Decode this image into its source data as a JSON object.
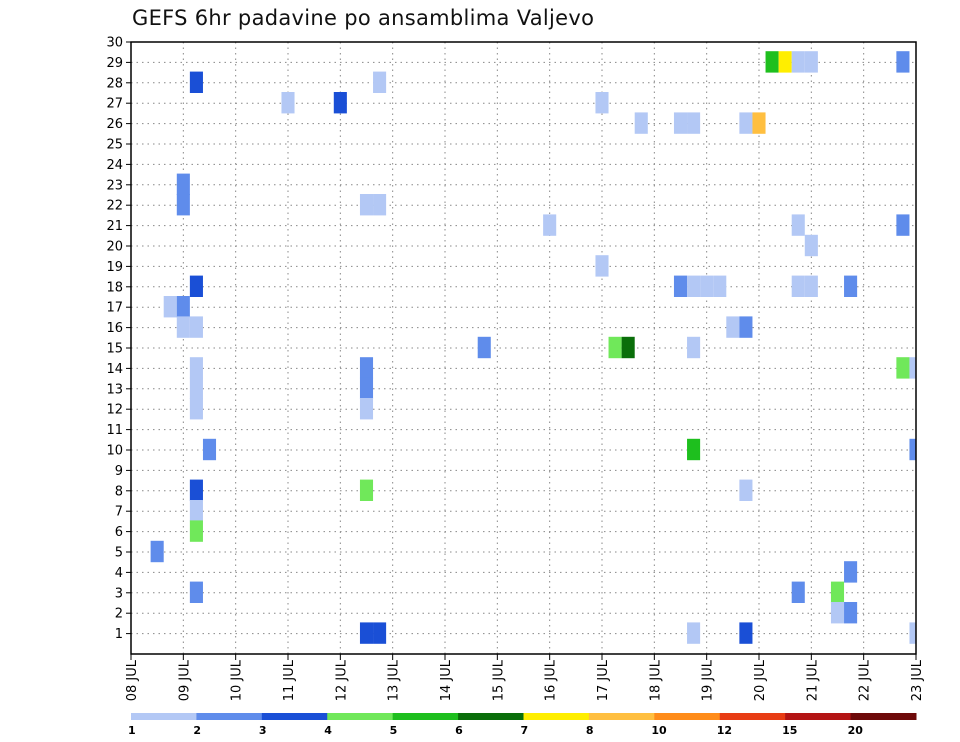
{
  "chart_data": {
    "type": "heatmap",
    "title": "GEFS 6hr padavine po ansamblima Valjevo",
    "y_ticks": [
      "1",
      "2",
      "3",
      "4",
      "5",
      "6",
      "7",
      "8",
      "9",
      "10",
      "11",
      "12",
      "13",
      "14",
      "15",
      "16",
      "17",
      "18",
      "19",
      "20",
      "21",
      "22",
      "23",
      "24",
      "25",
      "26",
      "27",
      "28",
      "29",
      "30"
    ],
    "y_range": [
      0,
      30
    ],
    "x_ticks": [
      "08 JUL",
      "09 JUL",
      "10 JUL",
      "11 JUL",
      "12 JUL",
      "13 JUL",
      "14 JUL",
      "15 JUL",
      "16 JUL",
      "17 JUL",
      "18 JUL",
      "19 JUL",
      "20 JUL",
      "21 JUL",
      "22 JUL",
      "23 JUL"
    ],
    "x_start": "08 JUL",
    "x_end": "23 JUL",
    "step_hours": 6,
    "grid": true,
    "colorbar": {
      "labels": [
        "1",
        "2",
        "3",
        "4",
        "5",
        "6",
        "7",
        "8",
        "10",
        "12",
        "15",
        "20"
      ],
      "colors": [
        "#b3c8f5",
        "#5f8ceb",
        "#1a4fd6",
        "#70e85a",
        "#1ebf1e",
        "#0a6e0a",
        "#ffee00",
        "#ffbf40",
        "#ff8c1a",
        "#e83c14",
        "#b41414",
        "#6e0a0a"
      ]
    },
    "cells": [
      {
        "member": 29,
        "day": "20 JUL",
        "hour": 6,
        "color": "#1ebf1e"
      },
      {
        "member": 29,
        "day": "20 JUL",
        "hour": 12,
        "color": "#ffee00"
      },
      {
        "member": 29,
        "day": "20 JUL",
        "hour": 18,
        "color": "#b3c8f5"
      },
      {
        "member": 29,
        "day": "21 JUL",
        "hour": 0,
        "color": "#b3c8f5"
      },
      {
        "member": 29,
        "day": "22 JUL",
        "hour": 18,
        "color": "#5f8ceb"
      },
      {
        "member": 28,
        "day": "09 JUL",
        "hour": 6,
        "color": "#1a4fd6"
      },
      {
        "member": 28,
        "day": "12 JUL",
        "hour": 18,
        "color": "#b3c8f5"
      },
      {
        "member": 27,
        "day": "11 JUL",
        "hour": 0,
        "color": "#b3c8f5"
      },
      {
        "member": 27,
        "day": "12 JUL",
        "hour": 0,
        "color": "#1a4fd6"
      },
      {
        "member": 27,
        "day": "17 JUL",
        "hour": 0,
        "color": "#b3c8f5"
      },
      {
        "member": 26,
        "day": "17 JUL",
        "hour": 18,
        "color": "#b3c8f5"
      },
      {
        "member": 26,
        "day": "18 JUL",
        "hour": 12,
        "color": "#b3c8f5"
      },
      {
        "member": 26,
        "day": "18 JUL",
        "hour": 18,
        "color": "#b3c8f5"
      },
      {
        "member": 26,
        "day": "19 JUL",
        "hour": 18,
        "color": "#b3c8f5"
      },
      {
        "member": 26,
        "day": "20 JUL",
        "hour": 0,
        "color": "#ffbf40"
      },
      {
        "member": 23,
        "day": "09 JUL",
        "hour": 0,
        "color": "#5f8ceb"
      },
      {
        "member": 22,
        "day": "09 JUL",
        "hour": 0,
        "color": "#5f8ceb"
      },
      {
        "member": 22,
        "day": "12 JUL",
        "hour": 12,
        "color": "#b3c8f5"
      },
      {
        "member": 22,
        "day": "12 JUL",
        "hour": 18,
        "color": "#b3c8f5"
      },
      {
        "member": 21,
        "day": "16 JUL",
        "hour": 0,
        "color": "#b3c8f5"
      },
      {
        "member": 21,
        "day": "20 JUL",
        "hour": 18,
        "color": "#b3c8f5"
      },
      {
        "member": 21,
        "day": "22 JUL",
        "hour": 18,
        "color": "#5f8ceb"
      },
      {
        "member": 20,
        "day": "21 JUL",
        "hour": 0,
        "color": "#b3c8f5"
      },
      {
        "member": 19,
        "day": "17 JUL",
        "hour": 0,
        "color": "#b3c8f5"
      },
      {
        "member": 18,
        "day": "09 JUL",
        "hour": 6,
        "color": "#1a4fd6"
      },
      {
        "member": 18,
        "day": "18 JUL",
        "hour": 12,
        "color": "#5f8ceb"
      },
      {
        "member": 18,
        "day": "18 JUL",
        "hour": 18,
        "color": "#b3c8f5"
      },
      {
        "member": 18,
        "day": "19 JUL",
        "hour": 0,
        "color": "#b3c8f5"
      },
      {
        "member": 18,
        "day": "19 JUL",
        "hour": 6,
        "color": "#b3c8f5"
      },
      {
        "member": 18,
        "day": "20 JUL",
        "hour": 18,
        "color": "#b3c8f5"
      },
      {
        "member": 18,
        "day": "21 JUL",
        "hour": 0,
        "color": "#b3c8f5"
      },
      {
        "member": 18,
        "day": "21 JUL",
        "hour": 18,
        "color": "#5f8ceb"
      },
      {
        "member": 17,
        "day": "08 JUL",
        "hour": 18,
        "color": "#b3c8f5"
      },
      {
        "member": 17,
        "day": "09 JUL",
        "hour": 0,
        "color": "#5f8ceb"
      },
      {
        "member": 16,
        "day": "09 JUL",
        "hour": 0,
        "color": "#b3c8f5"
      },
      {
        "member": 16,
        "day": "09 JUL",
        "hour": 6,
        "color": "#b3c8f5"
      },
      {
        "member": 16,
        "day": "19 JUL",
        "hour": 12,
        "color": "#b3c8f5"
      },
      {
        "member": 16,
        "day": "19 JUL",
        "hour": 18,
        "color": "#5f8ceb"
      },
      {
        "member": 15,
        "day": "14 JUL",
        "hour": 18,
        "color": "#5f8ceb"
      },
      {
        "member": 15,
        "day": "17 JUL",
        "hour": 6,
        "color": "#70e85a"
      },
      {
        "member": 15,
        "day": "17 JUL",
        "hour": 12,
        "color": "#0a6e0a"
      },
      {
        "member": 15,
        "day": "18 JUL",
        "hour": 18,
        "color": "#b3c8f5"
      },
      {
        "member": 14,
        "day": "09 JUL",
        "hour": 6,
        "color": "#b3c8f5"
      },
      {
        "member": 14,
        "day": "12 JUL",
        "hour": 12,
        "color": "#5f8ceb"
      },
      {
        "member": 14,
        "day": "22 JUL",
        "hour": 18,
        "color": "#70e85a"
      },
      {
        "member": 14,
        "day": "23 JUL",
        "hour": 0,
        "color": "#b3c8f5"
      },
      {
        "member": 13,
        "day": "09 JUL",
        "hour": 6,
        "color": "#b3c8f5"
      },
      {
        "member": 13,
        "day": "12 JUL",
        "hour": 12,
        "color": "#5f8ceb"
      },
      {
        "member": 12,
        "day": "09 JUL",
        "hour": 6,
        "color": "#b3c8f5"
      },
      {
        "member": 12,
        "day": "12 JUL",
        "hour": 12,
        "color": "#b3c8f5"
      },
      {
        "member": 10,
        "day": "09 JUL",
        "hour": 12,
        "color": "#5f8ceb"
      },
      {
        "member": 10,
        "day": "18 JUL",
        "hour": 18,
        "color": "#1ebf1e"
      },
      {
        "member": 10,
        "day": "23 JUL",
        "hour": 0,
        "color": "#5f8ceb"
      },
      {
        "member": 8,
        "day": "09 JUL",
        "hour": 6,
        "color": "#1a4fd6"
      },
      {
        "member": 8,
        "day": "12 JUL",
        "hour": 12,
        "color": "#70e85a"
      },
      {
        "member": 8,
        "day": "19 JUL",
        "hour": 18,
        "color": "#b3c8f5"
      },
      {
        "member": 7,
        "day": "09 JUL",
        "hour": 6,
        "color": "#b3c8f5"
      },
      {
        "member": 6,
        "day": "09 JUL",
        "hour": 6,
        "color": "#70e85a"
      },
      {
        "member": 5,
        "day": "08 JUL",
        "hour": 12,
        "color": "#5f8ceb"
      },
      {
        "member": 4,
        "day": "21 JUL",
        "hour": 18,
        "color": "#5f8ceb"
      },
      {
        "member": 3,
        "day": "09 JUL",
        "hour": 6,
        "color": "#5f8ceb"
      },
      {
        "member": 3,
        "day": "20 JUL",
        "hour": 18,
        "color": "#5f8ceb"
      },
      {
        "member": 3,
        "day": "21 JUL",
        "hour": 12,
        "color": "#70e85a"
      },
      {
        "member": 2,
        "day": "21 JUL",
        "hour": 12,
        "color": "#b3c8f5"
      },
      {
        "member": 2,
        "day": "21 JUL",
        "hour": 18,
        "color": "#5f8ceb"
      },
      {
        "member": 1,
        "day": "12 JUL",
        "hour": 12,
        "color": "#1a4fd6"
      },
      {
        "member": 1,
        "day": "12 JUL",
        "hour": 18,
        "color": "#1a4fd6"
      },
      {
        "member": 1,
        "day": "18 JUL",
        "hour": 18,
        "color": "#b3c8f5"
      },
      {
        "member": 1,
        "day": "19 JUL",
        "hour": 18,
        "color": "#1a4fd6"
      },
      {
        "member": 1,
        "day": "23 JUL",
        "hour": 0,
        "color": "#b3c8f5"
      }
    ]
  }
}
